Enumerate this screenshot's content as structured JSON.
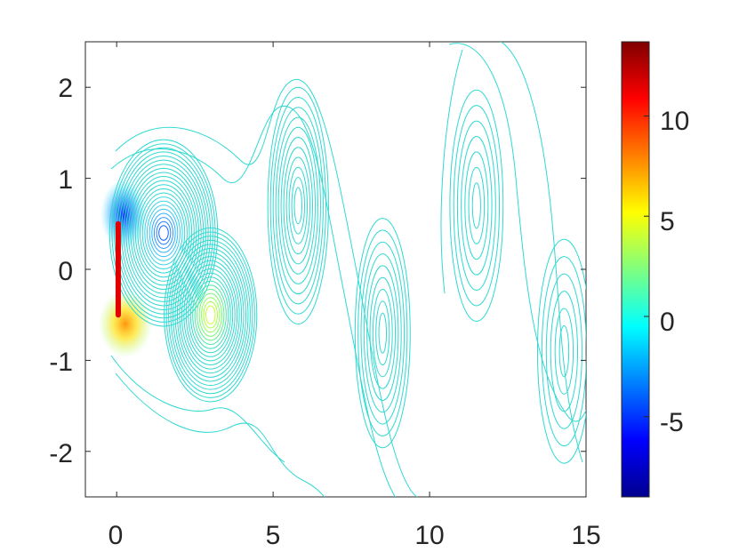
{
  "chart_data": {
    "type": "contour",
    "title": "",
    "xlabel": "",
    "ylabel": "",
    "xlim": [
      -1,
      15
    ],
    "ylim": [
      -2.5,
      2.5
    ],
    "x_ticks": [
      "0",
      "5",
      "10",
      "15"
    ],
    "y_ticks": [
      "2",
      "1",
      "0",
      "-1",
      "-2"
    ],
    "colorbar": {
      "colormap": "jet",
      "range": [
        -9,
        13.7
      ],
      "ticks": [
        "10",
        "5",
        "0",
        "-5"
      ],
      "low_color": "#00008f",
      "mid_color": "#00ffff",
      "high_color": "#800000"
    },
    "plate": {
      "x": 0.05,
      "y_range": [
        -0.5,
        0.5
      ],
      "color": "#e00000"
    },
    "vortices": [
      {
        "x": 1.5,
        "y": 0.4,
        "sign": "negative"
      },
      {
        "x": 3.0,
        "y": -0.5,
        "sign": "positive"
      },
      {
        "x": 5.8,
        "y": 0.7,
        "sign": "negative"
      },
      {
        "x": 8.5,
        "y": -0.7,
        "sign": "positive"
      },
      {
        "x": 11.5,
        "y": 0.7,
        "sign": "negative"
      },
      {
        "x": 14.3,
        "y": -0.9,
        "sign": "positive"
      }
    ],
    "grid": false,
    "legend": "none"
  }
}
